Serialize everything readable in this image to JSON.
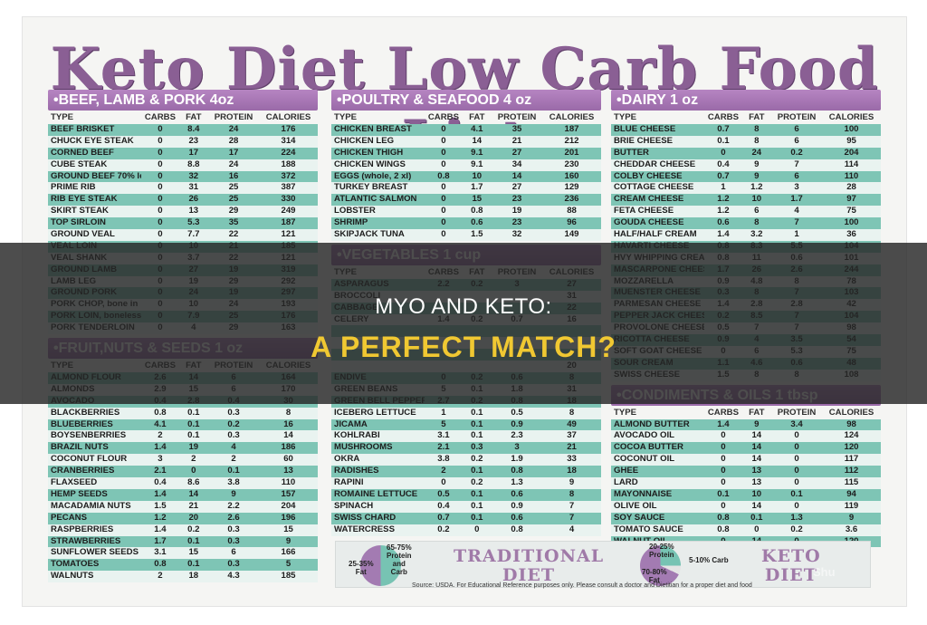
{
  "title": "Keto Diet Low Carb Food List",
  "headers": [
    "TYPE",
    "CARBS",
    "FAT",
    "PROTEIN",
    "CALORIES"
  ],
  "sections": [
    {
      "name": "•BEEF, LAMB & PORK 4oz",
      "rows": [
        [
          "BEEF BRISKET",
          "0",
          "8.4",
          "24",
          "176"
        ],
        [
          "CHUCK EYE STEAK",
          "0",
          "23",
          "28",
          "314"
        ],
        [
          "CORNED BEEF",
          "0",
          "17",
          "17",
          "224"
        ],
        [
          "CUBE STEAK",
          "0",
          "8.8",
          "24",
          "188"
        ],
        [
          "GROUND BEEF 70% lean",
          "0",
          "32",
          "16",
          "372"
        ],
        [
          "PRIME RIB",
          "0",
          "31",
          "25",
          "387"
        ],
        [
          "RIB EYE STEAK",
          "0",
          "26",
          "25",
          "330"
        ],
        [
          "SKIRT STEAK",
          "0",
          "13",
          "29",
          "249"
        ],
        [
          "TOP SIRLOIN",
          "0",
          "5.3",
          "35",
          "187"
        ],
        [
          "GROUND VEAL",
          "0",
          "7.7",
          "22",
          "121"
        ],
        [
          "VEAL LOIN",
          "0",
          "10",
          "21",
          "185"
        ],
        [
          "VEAL SHANK",
          "0",
          "3.7",
          "22",
          "121"
        ],
        [
          "GROUND LAMB",
          "0",
          "27",
          "19",
          "319"
        ],
        [
          "LAMB LEG",
          "0",
          "19",
          "29",
          "292"
        ],
        [
          "GROUND PORK",
          "0",
          "24",
          "19",
          "297"
        ],
        [
          "PORK CHOP, bone in",
          "0",
          "10",
          "24",
          "193"
        ],
        [
          "PORK LOIN, boneless",
          "0",
          "7.9",
          "25",
          "176"
        ],
        [
          "PORK TENDERLOIN",
          "0",
          "4",
          "29",
          "163"
        ]
      ]
    },
    {
      "name": "•FRUIT,NUTS & SEEDS 1 oz",
      "rows": [
        [
          "ALMOND FLOUR",
          "2.6",
          "14",
          "6",
          "164"
        ],
        [
          "ALMONDS",
          "2.9",
          "15",
          "6",
          "170"
        ],
        [
          "AVOCADO",
          "0.4",
          "2.8",
          "0.4",
          "30"
        ],
        [
          "BLACKBERRIES",
          "0.8",
          "0.1",
          "0.3",
          "8"
        ],
        [
          "BLUEBERRIES",
          "4.1",
          "0.1",
          "0.2",
          "16"
        ],
        [
          "BOYSENBERRIES",
          "2",
          "0.1",
          "0.3",
          "14"
        ],
        [
          "BRAZIL NUTS",
          "1.4",
          "19",
          "4",
          "186"
        ],
        [
          "COCONUT FLOUR",
          "3",
          "2",
          "2",
          "60"
        ],
        [
          "CRANBERRIES",
          "2.1",
          "0",
          "0.1",
          "13"
        ],
        [
          "FLAXSEED",
          "0.4",
          "8.6",
          "3.8",
          "110"
        ],
        [
          "HEMP SEEDS",
          "1.4",
          "14",
          "9",
          "157"
        ],
        [
          "MACADAMIA NUTS",
          "1.5",
          "21",
          "2.2",
          "204"
        ],
        [
          "PECANS",
          "1.2",
          "20",
          "2.6",
          "196"
        ],
        [
          "RASPBERRIES",
          "1.4",
          "0.2",
          "0.3",
          "15"
        ],
        [
          "STRAWBERRIES",
          "1.7",
          "0.1",
          "0.3",
          "9"
        ],
        [
          "SUNFLOWER SEEDS",
          "3.1",
          "15",
          "6",
          "166"
        ],
        [
          "TOMATOES",
          "0.8",
          "0.1",
          "0.3",
          "5"
        ],
        [
          "WALNUTS",
          "2",
          "18",
          "4.3",
          "185"
        ]
      ]
    },
    {
      "name": "•POULTRY & SEAFOOD 4 oz",
      "rows": [
        [
          "CHICKEN BREAST",
          "0",
          "4.1",
          "35",
          "187"
        ],
        [
          "CHICKEN LEG",
          "0",
          "14",
          "21",
          "212"
        ],
        [
          "CHICKEN THIGH",
          "0",
          "9.1",
          "27",
          "201"
        ],
        [
          "CHICKEN WINGS",
          "0",
          "9.1",
          "34",
          "230"
        ],
        [
          "EGGS (whole, 2 xl)",
          "0.8",
          "10",
          "14",
          "160"
        ],
        [
          "TURKEY BREAST",
          "0",
          "1.7",
          "27",
          "129"
        ],
        [
          "ATLANTIC SALMON",
          "0",
          "15",
          "23",
          "236"
        ],
        [
          "LOBSTER",
          "0",
          "0.8",
          "19",
          "88"
        ],
        [
          "SHRIMP",
          "0",
          "0.6",
          "23",
          "96"
        ],
        [
          "SKIPJACK TUNA",
          "0",
          "1.5",
          "32",
          "149"
        ]
      ]
    },
    {
      "name": "•VEGETABLES 1 cup",
      "rows": [
        [
          "ASPARAGUS",
          "2.2",
          "0.2",
          "3",
          "27"
        ],
        [
          "BROCCOLI",
          "",
          "",
          "",
          "31"
        ],
        [
          "CABBAGE",
          "",
          "",
          "",
          "22"
        ],
        [
          "CELERY",
          "1.4",
          "0.2",
          "0.7",
          "16"
        ],
        [
          "",
          "",
          "",
          "",
          ""
        ],
        [
          "",
          "",
          "",
          "",
          ""
        ],
        [
          "",
          "",
          "",
          "",
          ""
        ],
        [
          "",
          "",
          "",
          "",
          "20"
        ],
        [
          "ENDIVE",
          "0",
          "0.2",
          "0.6",
          "8"
        ],
        [
          "GREEN BEANS",
          "5",
          "0.1",
          "1.8",
          "31"
        ],
        [
          "GREEN BELL PEPPER",
          "2.7",
          "0.2",
          "0.8",
          "18"
        ],
        [
          "ICEBERG LETTUCE",
          "1",
          "0.1",
          "0.5",
          "8"
        ],
        [
          "JICAMA",
          "5",
          "0.1",
          "0.9",
          "49"
        ],
        [
          "KOHLRABI",
          "3.1",
          "0.1",
          "2.3",
          "37"
        ],
        [
          "MUSHROOMS",
          "2.1",
          "0.3",
          "3",
          "21"
        ],
        [
          "OKRA",
          "3.8",
          "0.2",
          "1.9",
          "33"
        ],
        [
          "RADISHES",
          "2",
          "0.1",
          "0.8",
          "18"
        ],
        [
          "RAPINI",
          "0",
          "0.2",
          "1.3",
          "9"
        ],
        [
          "ROMAINE LETTUCE",
          "0.5",
          "0.1",
          "0.6",
          "8"
        ],
        [
          "SPINACH",
          "0.4",
          "0.1",
          "0.9",
          "7"
        ],
        [
          "SWISS CHARD",
          "0.7",
          "0.1",
          "0.6",
          "7"
        ],
        [
          "WATERCRESS",
          "0.2",
          "0",
          "0.8",
          "4"
        ]
      ]
    },
    {
      "name": "•DAIRY 1 oz",
      "rows": [
        [
          "BLUE CHEESE",
          "0.7",
          "8",
          "6",
          "100"
        ],
        [
          "BRIE CHEESE",
          "0.1",
          "8",
          "6",
          "95"
        ],
        [
          "BUTTER",
          "0",
          "24",
          "0.2",
          "204"
        ],
        [
          "CHEDDAR CHEESE",
          "0.4",
          "9",
          "7",
          "114"
        ],
        [
          "COLBY CHEESE",
          "0.7",
          "9",
          "6",
          "110"
        ],
        [
          "COTTAGE CHEESE",
          "1",
          "1.2",
          "3",
          "28"
        ],
        [
          "CREAM CHEESE",
          "1.2",
          "10",
          "1.7",
          "97"
        ],
        [
          "FETA CHEESE",
          "1.2",
          "6",
          "4",
          "75"
        ],
        [
          "GOUDA CHEESE",
          "0.6",
          "8",
          "7",
          "100"
        ],
        [
          "HALF/HALF CREAM",
          "1.4",
          "3.2",
          "1",
          "36"
        ],
        [
          "HAVARTI CHEESE",
          "0.8",
          "8.3",
          "5.5",
          "104"
        ],
        [
          "HVY WHIPPING CREAM",
          "0.8",
          "11",
          "0.6",
          "101"
        ],
        [
          "MASCARPONE CHEESE",
          "1.7",
          "26",
          "2.6",
          "244"
        ],
        [
          "MOZZARELLA",
          "0.9",
          "4.8",
          "8",
          "78"
        ],
        [
          "MUENSTER CHEESE",
          "0.3",
          "8",
          "7",
          "103"
        ],
        [
          "PARMESAN CHEESE",
          "1.4",
          "2.8",
          "2.8",
          "42"
        ],
        [
          "PEPPER JACK CHEESE",
          "0.2",
          "8.5",
          "7",
          "104"
        ],
        [
          "PROVOLONE CHEESE",
          "0.5",
          "7",
          "7",
          "98"
        ],
        [
          "RICOTTA CHEESE",
          "0.9",
          "4",
          "3.5",
          "54"
        ],
        [
          "SOFT GOAT CHEESE",
          "0",
          "6",
          "5.3",
          "75"
        ],
        [
          "SOUR CREAM",
          "1.1",
          "4.6",
          "0.6",
          "48"
        ],
        [
          "SWISS CHEESE",
          "1.5",
          "8",
          "8",
          "108"
        ]
      ]
    },
    {
      "name": "•CONDIMENTS & OILS 1 tbsp",
      "rows": [
        [
          "ALMOND BUTTER",
          "1.4",
          "9",
          "3.4",
          "98"
        ],
        [
          "AVOCADO OIL",
          "0",
          "14",
          "0",
          "124"
        ],
        [
          "COCOA BUTTER",
          "0",
          "14",
          "0",
          "120"
        ],
        [
          "COCONUT OIL",
          "0",
          "14",
          "0",
          "117"
        ],
        [
          "GHEE",
          "0",
          "13",
          "0",
          "112"
        ],
        [
          "LARD",
          "0",
          "13",
          "0",
          "115"
        ],
        [
          "MAYONNAISE",
          "0.1",
          "10",
          "0.1",
          "94"
        ],
        [
          "OLIVE OIL",
          "0",
          "14",
          "0",
          "119"
        ],
        [
          "SOY SAUCE",
          "0.8",
          "0.1",
          "1.3",
          "9"
        ],
        [
          "TOMATO SAUCE",
          "0.8",
          "0",
          "0.2",
          "3.6"
        ],
        [
          "WALNUT OIL",
          "0",
          "14",
          "0",
          "120"
        ]
      ]
    }
  ],
  "diets": {
    "traditional": {
      "name": "TRADITIONAL\nDIET",
      "label_protein_carb": "65-75%\nProtein\nand\nCarb",
      "label_fat": "25-35%\nFat"
    },
    "keto": {
      "name": "KETO\nDIET",
      "label_protein": "20-25%\nProtein",
      "label_carb": "5-10% Carb",
      "label_fat": "70-80%\nFat"
    }
  },
  "source_note": "Source: USDA.  For Educational Reference purposes only.  Please consult a doctor and Dietitian for a proper diet and food",
  "watermark": "Shu",
  "overlay": {
    "line1": "MYO AND KETO:",
    "line2": "A PERFECT MATCH?"
  },
  "colors": {
    "header_purple": "#a67ab3",
    "row_teal": "#7ec5b5",
    "overlay_yellow": "#f0c832"
  }
}
